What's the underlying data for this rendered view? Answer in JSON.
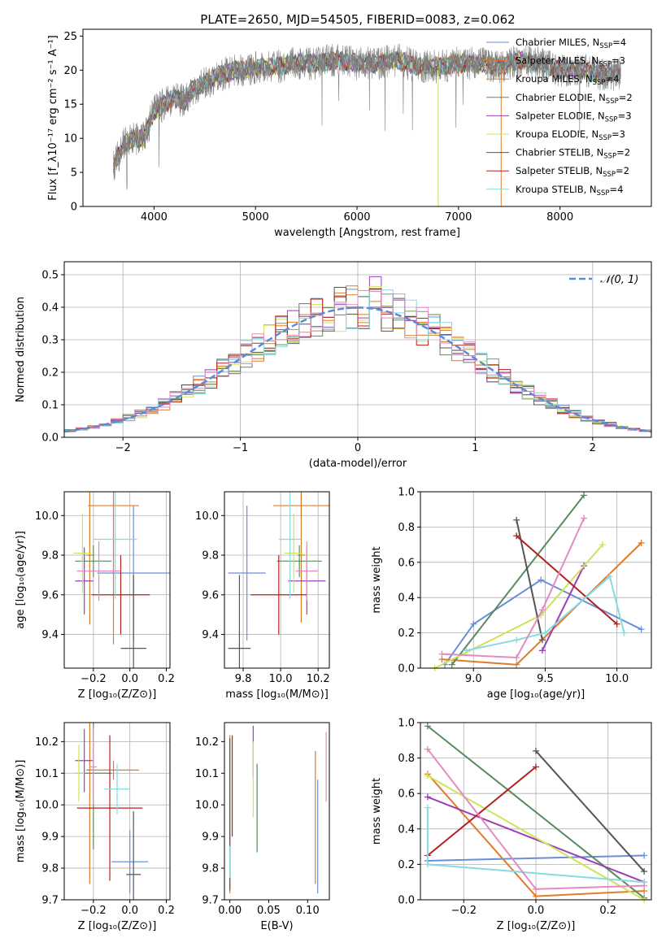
{
  "figure": {
    "title": "PLATE=2650, MJD=54505, FIBERID=0083, z=0.062",
    "colors": [
      "#6a8fd8",
      "#e07b2a",
      "#d47f2c",
      "#5a8a5e",
      "#9b3fb5",
      "#cfe35a",
      "#555555",
      "#b22222",
      "#86dbe0",
      "#e38ac0"
    ]
  },
  "chart_data": [
    {
      "id": "spectrum",
      "type": "line",
      "xlabel": "wavelength [Angstrom, rest frame]",
      "ylabel": "Flux [f_λ10⁻¹⁷ erg cm⁻² s⁻¹ A⁻¹]",
      "xlim": [
        3300,
        8900
      ],
      "ylim": [
        0,
        26
      ],
      "xticks": [
        4000,
        5000,
        6000,
        7000,
        8000
      ],
      "yticks": [
        0,
        5,
        10,
        15,
        20,
        25
      ],
      "grid": false,
      "legend_position": "top-right",
      "legend": [
        {
          "label": "Chabrier MILES, N",
          "sub": "SSP",
          "suffix": "=4",
          "color": "#6a8fd8"
        },
        {
          "label": "Salpeter MILES, N",
          "sub": "SSP",
          "suffix": "=3",
          "color": "#e07b2a"
        },
        {
          "label": "Kroupa MILES, N",
          "sub": "SSP",
          "suffix": "=4",
          "color": "#d47f2c"
        },
        {
          "label": "Chabrier ELODIE, N",
          "sub": "SSP",
          "suffix": "=2",
          "color": "#5a8a5e"
        },
        {
          "label": "Salpeter ELODIE, N",
          "sub": "SSP",
          "suffix": "=3",
          "color": "#9b3fb5"
        },
        {
          "label": "Kroupa ELODIE, N",
          "sub": "SSP",
          "suffix": "=3",
          "color": "#cfe35a"
        },
        {
          "label": "Chabrier STELIB, N",
          "sub": "SSP",
          "suffix": "=2",
          "color": "#555555"
        },
        {
          "label": "Salpeter STELIB, N",
          "sub": "SSP",
          "suffix": "=2",
          "color": "#b22222"
        },
        {
          "label": "Kroupa STELIB, N",
          "sub": "SSP",
          "suffix": "=4",
          "color": "#86dbe0"
        }
      ],
      "continuum": {
        "x": [
          3600,
          3700,
          3800,
          3900,
          4000,
          4100,
          4200,
          4300,
          4400,
          4500,
          4600,
          4700,
          4800,
          4900,
          5000,
          5200,
          5400,
          5600,
          5800,
          6000,
          6200,
          6400,
          6600,
          6800,
          7000,
          7200,
          7400,
          7600,
          7800,
          8000,
          8200,
          8400,
          8600
        ],
        "y": [
          6,
          9,
          10,
          10,
          14,
          15,
          16,
          15.5,
          17.5,
          18,
          19,
          19.5,
          20,
          20,
          20.5,
          20.5,
          21,
          21,
          21.5,
          21,
          21,
          21.5,
          20.5,
          20.5,
          21,
          21,
          20.5,
          21.5,
          21,
          20,
          20,
          19.5,
          19.5
        ]
      }
    },
    {
      "id": "residuals",
      "type": "histogram",
      "xlabel": "(data-model)/error",
      "ylabel": "Normed distribution",
      "xlim": [
        -2.5,
        2.5
      ],
      "ylim": [
        0,
        0.54
      ],
      "xticks": [
        -2,
        -1,
        0,
        1,
        2
      ],
      "yticks": [
        0.0,
        0.1,
        0.2,
        0.3,
        0.4,
        0.5
      ],
      "grid": true,
      "legend_position": "top-right",
      "reference_label": "𝒩(0, 1)",
      "bin_edges_step": 0.1,
      "series_peak_values": [
        0.44,
        0.46,
        0.45,
        0.48,
        0.51,
        0.47,
        0.44,
        0.46,
        0.47,
        0.49
      ]
    },
    {
      "id": "age_vs_Z",
      "type": "errorbar",
      "xlabel": "Z [log₁₀(Z/Z⊙)]",
      "ylabel": "age  [log₁₀(age/yr)]",
      "xlim": [
        -0.36,
        0.22
      ],
      "ylim": [
        9.23,
        10.12
      ],
      "xticks": [
        -0.2,
        0.0,
        0.2
      ],
      "yticks": [
        9.4,
        9.6,
        9.8,
        10.0
      ],
      "grid": true,
      "points": [
        {
          "x": 0.02,
          "y": 9.71,
          "xerr": 0.2,
          "yerr": 0.34,
          "color": "#6a8fd8"
        },
        {
          "x": -0.09,
          "y": 10.05,
          "xerr": 0.14,
          "yerr": 0.7,
          "color": "#e07b2a"
        },
        {
          "x": -0.22,
          "y": 9.8,
          "xerr": 0.02,
          "yerr": 0.35,
          "color": "#d47f2c"
        },
        {
          "x": -0.2,
          "y": 9.77,
          "xerr": 0.1,
          "yerr": 0.08,
          "color": "#5a8a5e"
        },
        {
          "x": -0.25,
          "y": 9.67,
          "xerr": 0.05,
          "yerr": 0.17,
          "color": "#9b3fb5"
        },
        {
          "x": -0.26,
          "y": 9.81,
          "xerr": 0.05,
          "yerr": 0.2,
          "color": "#cfe35a"
        },
        {
          "x": 0.02,
          "y": 9.33,
          "xerr": 0.07,
          "yerr": 0.37,
          "color": "#555555"
        },
        {
          "x": -0.05,
          "y": 9.6,
          "xerr": 0.16,
          "yerr": 0.2,
          "color": "#b22222"
        },
        {
          "x": -0.08,
          "y": 9.88,
          "xerr": 0.12,
          "yerr": 0.3,
          "color": "#86dbe0"
        },
        {
          "x": -0.17,
          "y": 9.72,
          "xerr": 0.12,
          "yerr": 0.15,
          "color": "#e38ac0"
        }
      ]
    },
    {
      "id": "age_vs_mass",
      "type": "errorbar",
      "xlabel": "mass [log₁₀(M/M⊙)]",
      "ylabel": "",
      "xlim": [
        9.7,
        10.26
      ],
      "ylim": [
        9.23,
        10.12
      ],
      "xticks": [
        9.8,
        10.0,
        10.2
      ],
      "yticks": [
        9.4,
        9.6,
        9.8,
        10.0
      ],
      "grid": true,
      "points": [
        {
          "x": 9.82,
          "y": 9.71,
          "xerr": 0.1,
          "yerr": 0.34,
          "color": "#6a8fd8"
        },
        {
          "x": 10.11,
          "y": 10.05,
          "xerr": 0.15,
          "yerr": 0.06,
          "color": "#e07b2a"
        },
        {
          "x": 10.11,
          "y": 9.8,
          "xerr": 0.02,
          "yerr": 0.34,
          "color": "#d47f2c"
        },
        {
          "x": 10.1,
          "y": 9.77,
          "xerr": 0.12,
          "yerr": 0.08,
          "color": "#5a8a5e"
        },
        {
          "x": 10.14,
          "y": 9.67,
          "xerr": 0.1,
          "yerr": 0.17,
          "color": "#9b3fb5"
        },
        {
          "x": 10.07,
          "y": 9.81,
          "xerr": 0.05,
          "yerr": 0.2,
          "color": "#cfe35a"
        },
        {
          "x": 9.78,
          "y": 9.33,
          "xerr": 0.06,
          "yerr": 0.37,
          "color": "#555555"
        },
        {
          "x": 9.99,
          "y": 9.6,
          "xerr": 0.15,
          "yerr": 0.2,
          "color": "#b22222"
        },
        {
          "x": 10.05,
          "y": 9.88,
          "xerr": 0.06,
          "yerr": 0.3,
          "color": "#86dbe0"
        },
        {
          "x": 10.14,
          "y": 9.72,
          "xerr": 0.06,
          "yerr": 0.15,
          "color": "#e38ac0"
        }
      ]
    },
    {
      "id": "weight_vs_age",
      "type": "line",
      "xlabel": "age  [log₁₀(age/yr)]",
      "ylabel": "mass weight",
      "xlim": [
        8.63,
        10.24
      ],
      "ylim": [
        0,
        1
      ],
      "xticks": [
        9.0,
        9.5,
        10.0
      ],
      "yticks": [
        0.0,
        0.2,
        0.4,
        0.6,
        0.8,
        1.0
      ],
      "grid": true,
      "series": [
        {
          "color": "#6a8fd8",
          "x": [
            8.8,
            9.0,
            9.47,
            10.17
          ],
          "y": [
            0.02,
            0.25,
            0.5,
            0.22
          ]
        },
        {
          "color": "#e07b2a",
          "x": [
            8.78,
            9.3,
            10.17
          ],
          "y": [
            0.05,
            0.02,
            0.71
          ]
        },
        {
          "color": "#5a8a5e",
          "x": [
            8.85,
            9.77
          ],
          "y": [
            0.02,
            0.98
          ]
        },
        {
          "color": "#9b3fb5",
          "x": [
            9.48,
            9.77
          ],
          "y": [
            0.1,
            0.58
          ]
        },
        {
          "color": "#cfe35a",
          "x": [
            8.73,
            9.47,
            9.9
          ],
          "y": [
            0.0,
            0.3,
            0.7
          ]
        },
        {
          "color": "#555555",
          "x": [
            9.3,
            9.48
          ],
          "y": [
            0.84,
            0.16
          ]
        },
        {
          "color": "#b22222",
          "x": [
            9.3,
            10.0
          ],
          "y": [
            0.75,
            0.25
          ]
        },
        {
          "color": "#86dbe0",
          "x": [
            8.95,
            9.3,
            9.5,
            9.95,
            10.05
          ],
          "y": [
            0.1,
            0.16,
            0.2,
            0.52,
            0.2
          ]
        },
        {
          "color": "#e38ac0",
          "x": [
            8.78,
            9.3,
            9.48,
            9.77
          ],
          "y": [
            0.08,
            0.06,
            0.33,
            0.85
          ]
        }
      ]
    },
    {
      "id": "mass_vs_Z",
      "type": "errorbar",
      "xlabel": "Z [log₁₀(Z/Z⊙)]",
      "ylabel": "mass [log₁₀(M/M⊙)]",
      "xlim": [
        -0.36,
        0.22
      ],
      "ylim": [
        9.7,
        10.26
      ],
      "xticks": [
        -0.2,
        0.0,
        0.2
      ],
      "yticks": [
        9.7,
        9.8,
        9.9,
        10.0,
        10.1,
        10.2
      ],
      "grid": true,
      "points": [
        {
          "x": 0.0,
          "y": 9.82,
          "xerr": 0.1,
          "yerr": 0.1,
          "color": "#6a8fd8"
        },
        {
          "x": -0.09,
          "y": 10.11,
          "xerr": 0.14,
          "yerr": 0.03,
          "color": "#e07b2a"
        },
        {
          "x": -0.22,
          "y": 10.11,
          "xerr": 0.02,
          "yerr": 0.36,
          "color": "#d47f2c"
        },
        {
          "x": -0.2,
          "y": 10.1,
          "xerr": 0.1,
          "yerr": 0.24,
          "color": "#5a8a5e"
        },
        {
          "x": -0.25,
          "y": 10.14,
          "xerr": 0.05,
          "yerr": 0.1,
          "color": "#9b3fb5"
        },
        {
          "x": -0.28,
          "y": 10.1,
          "xerr": 0.03,
          "yerr": 0.09,
          "color": "#cfe35a"
        },
        {
          "x": 0.02,
          "y": 9.78,
          "xerr": 0.04,
          "yerr": 0.2,
          "color": "#555555"
        },
        {
          "x": -0.11,
          "y": 9.99,
          "xerr": 0.18,
          "yerr": 0.23,
          "color": "#b22222"
        },
        {
          "x": -0.07,
          "y": 10.05,
          "xerr": 0.07,
          "yerr": 0.08,
          "color": "#86dbe0"
        },
        {
          "x": -0.2,
          "y": 10.12,
          "xerr": 0.02,
          "yerr": 0.12,
          "color": "#e38ac0"
        }
      ]
    },
    {
      "id": "mass_vs_ebv",
      "type": "errorbar",
      "xlabel": "E(B-V)",
      "ylabel": "",
      "xlim": [
        -0.007,
        0.128
      ],
      "ylim": [
        9.7,
        10.26
      ],
      "xticks": [
        0.0,
        0.05,
        0.1
      ],
      "xtick_labels": [
        "0.00",
        "0.05",
        "0.10"
      ],
      "yticks": [
        9.7,
        9.8,
        9.9,
        10.0,
        10.1,
        10.2
      ],
      "grid": false,
      "points": [
        {
          "x": 0.113,
          "y": 9.9,
          "xerr": 0,
          "yerr": 0.18,
          "color": "#6a8fd8"
        },
        {
          "x": 0.11,
          "y": 9.96,
          "xerr": 0,
          "yerr": 0.21,
          "color": "#e07b2a"
        },
        {
          "x": 0.0,
          "y": 9.97,
          "xerr": 0,
          "yerr": 0.25,
          "color": "#d47f2c"
        },
        {
          "x": 0.035,
          "y": 9.99,
          "xerr": 0,
          "yerr": 0.14,
          "color": "#5a8a5e"
        },
        {
          "x": 0.03,
          "y": 10.17,
          "xerr": 0,
          "yerr": 0.08,
          "color": "#9b3fb5"
        },
        {
          "x": 0.03,
          "y": 10.08,
          "xerr": 0,
          "yerr": 0.12,
          "color": "#cfe35a"
        },
        {
          "x": 0.0,
          "y": 9.97,
          "xerr": 0,
          "yerr": 0.24,
          "color": "#555555"
        },
        {
          "x": 0.003,
          "y": 10.06,
          "xerr": 0,
          "yerr": 0.16,
          "color": "#b22222"
        },
        {
          "x": 0.0,
          "y": 9.82,
          "xerr": 0,
          "yerr": 0.05,
          "color": "#86dbe0"
        },
        {
          "x": 0.124,
          "y": 10.12,
          "xerr": 0,
          "yerr": 0.11,
          "color": "#e38ac0"
        }
      ]
    },
    {
      "id": "weight_vs_Z",
      "type": "line",
      "xlabel": "Z [log₁₀(Z/Z⊙)]",
      "ylabel": "mass weight",
      "xlim": [
        -0.32,
        0.32
      ],
      "ylim": [
        0,
        1
      ],
      "xticks": [
        -0.2,
        0.0,
        0.2
      ],
      "yticks": [
        0.0,
        0.2,
        0.4,
        0.6,
        0.8,
        1.0
      ],
      "grid": true,
      "series": [
        {
          "color": "#6a8fd8",
          "x": [
            -0.3,
            0.3
          ],
          "y": [
            0.22,
            0.25
          ]
        },
        {
          "color": "#e07b2a",
          "x": [
            -0.3,
            0.0,
            0.3
          ],
          "y": [
            0.71,
            0.02,
            0.05
          ]
        },
        {
          "color": "#5a8a5e",
          "x": [
            -0.3,
            0.3
          ],
          "y": [
            0.98,
            0.01
          ]
        },
        {
          "color": "#9b3fb5",
          "x": [
            -0.3,
            0.3
          ],
          "y": [
            0.58,
            0.1
          ]
        },
        {
          "color": "#cfe35a",
          "x": [
            -0.3,
            0.3
          ],
          "y": [
            0.7,
            0.0
          ]
        },
        {
          "color": "#555555",
          "x": [
            0.0,
            0.3
          ],
          "y": [
            0.84,
            0.16
          ]
        },
        {
          "color": "#b22222",
          "x": [
            -0.3,
            0.0
          ],
          "y": [
            0.25,
            0.75
          ]
        },
        {
          "color": "#86dbe0",
          "x": [
            -0.3,
            -0.3,
            0.3
          ],
          "y": [
            0.52,
            0.2,
            0.1
          ]
        },
        {
          "color": "#e38ac0",
          "x": [
            -0.3,
            0.0,
            0.3
          ],
          "y": [
            0.85,
            0.06,
            0.08
          ]
        }
      ]
    }
  ]
}
